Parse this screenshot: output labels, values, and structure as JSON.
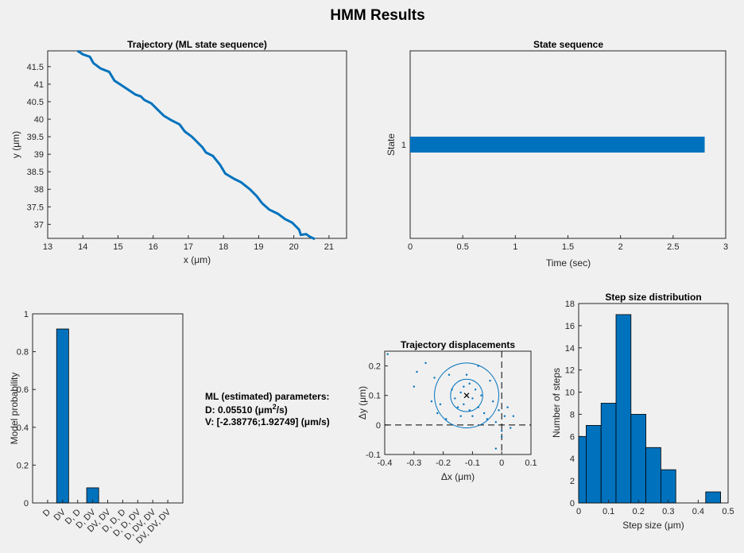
{
  "figure": {
    "title": "HMM Results",
    "params_heading": "ML (estimated) parameters:",
    "params_D_prefix": "D: 0.05510 (",
    "params_D_unit": "μm",
    "params_D_exp": "2",
    "params_D_suffix": "/s)",
    "params_V": "V: [-2.38776;1.92749] (μm/s)"
  },
  "colors": {
    "accent": "#0072bd",
    "bar_edge": "#000000",
    "axis": "#262626",
    "background": "#f0f0f0",
    "plot_bg": "#ffffff"
  },
  "chart_data": [
    {
      "id": "trajectory",
      "type": "line",
      "title": "Trajectory (ML state sequence)",
      "xlabel": "x (μm)",
      "ylabel": "y (μm)",
      "xlim": [
        13,
        21.5
      ],
      "ylim": [
        36.6,
        41.95
      ],
      "xticks": [
        "13",
        "14",
        "15",
        "16",
        "17",
        "18",
        "19",
        "20",
        "21"
      ],
      "yticks": [
        "37",
        "37.5",
        "38",
        "38.5",
        "39",
        "39.5",
        "40",
        "40.5",
        "41",
        "41.5"
      ],
      "x": [
        13.85,
        14.0,
        14.2,
        14.3,
        14.5,
        14.75,
        14.9,
        15.05,
        15.2,
        15.5,
        15.65,
        15.75,
        15.95,
        16.1,
        16.3,
        16.5,
        16.75,
        16.9,
        17.1,
        17.4,
        17.5,
        17.7,
        17.9,
        18.05,
        18.3,
        18.5,
        18.75,
        18.95,
        19.1,
        19.3,
        19.55,
        19.75,
        19.95,
        20.05,
        20.15,
        20.2,
        20.35,
        20.45,
        20.6
      ],
      "y": [
        41.95,
        41.85,
        41.78,
        41.6,
        41.45,
        41.35,
        41.1,
        41.0,
        40.9,
        40.7,
        40.65,
        40.55,
        40.45,
        40.3,
        40.1,
        39.98,
        39.85,
        39.65,
        39.5,
        39.2,
        39.05,
        38.95,
        38.7,
        38.45,
        38.3,
        38.2,
        38.0,
        37.8,
        37.6,
        37.42,
        37.3,
        37.15,
        37.05,
        36.95,
        36.85,
        36.7,
        36.72,
        36.65,
        36.58
      ]
    },
    {
      "id": "state_sequence",
      "type": "line",
      "title": "State sequence",
      "xlabel": "Time (sec)",
      "ylabel": "State",
      "xlim": [
        0,
        3
      ],
      "ylim": [
        0.5,
        1.5
      ],
      "xticks": [
        "0",
        "0.5",
        "1",
        "1.5",
        "2",
        "2.5",
        "3"
      ],
      "yticks": [
        "1"
      ],
      "series": [
        {
          "x": [
            0,
            2.8
          ],
          "y": [
            1,
            1
          ]
        }
      ]
    },
    {
      "id": "model_probability",
      "type": "bar",
      "title": "",
      "xlabel": "",
      "ylabel": "Model probability",
      "ylim": [
        0,
        1
      ],
      "yticks": [
        "0",
        "0.2",
        "0.4",
        "0.6",
        "0.8",
        "1"
      ],
      "categories": [
        "D",
        "DV",
        "D, D",
        "D, DV",
        "DV, DV",
        "D, D, D",
        "D, D, DV",
        "D, DV, DV",
        "DV, DV, DV"
      ],
      "values": [
        0,
        0.92,
        0,
        0.08,
        0,
        0,
        0,
        0,
        0
      ]
    },
    {
      "id": "displacements",
      "type": "scatter",
      "title": "Trajectory displacements",
      "xlabel": "Δx (μm)",
      "ylabel": "Δy (μm)",
      "xlim": [
        -0.4,
        0.1
      ],
      "ylim": [
        -0.1,
        0.25
      ],
      "xticks": [
        "-0.4",
        "-0.3",
        "-0.2",
        "-0.1",
        "0",
        "0.1"
      ],
      "yticks": [
        "-0.1",
        "0",
        "0.1",
        "0.2"
      ],
      "mean": [
        -0.12,
        0.1
      ],
      "circle_radii": [
        0.055,
        0.11
      ],
      "points": [
        [
          -0.39,
          0.24
        ],
        [
          -0.29,
          0.18
        ],
        [
          -0.3,
          0.13
        ],
        [
          -0.26,
          0.21
        ],
        [
          -0.23,
          0.16
        ],
        [
          -0.24,
          0.08
        ],
        [
          -0.21,
          0.07
        ],
        [
          -0.18,
          0.17
        ],
        [
          -0.17,
          0.12
        ],
        [
          -0.16,
          0.09
        ],
        [
          -0.15,
          0.06
        ],
        [
          -0.14,
          0.11
        ],
        [
          -0.14,
          0.03
        ],
        [
          -0.13,
          0.13
        ],
        [
          -0.13,
          0.07
        ],
        [
          -0.12,
          0.1
        ],
        [
          -0.11,
          0.14
        ],
        [
          -0.11,
          0.05
        ],
        [
          -0.1,
          0.09
        ],
        [
          -0.1,
          0.03
        ],
        [
          -0.09,
          0.12
        ],
        [
          -0.08,
          0.06
        ],
        [
          -0.07,
          0.1
        ],
        [
          -0.06,
          0.04
        ],
        [
          -0.05,
          0.02
        ],
        [
          -0.04,
          0.15
        ],
        [
          -0.03,
          0.08
        ],
        [
          -0.02,
          0.01
        ],
        [
          -0.01,
          0.05
        ],
        [
          0.0,
          -0.02
        ],
        [
          0.01,
          0.03
        ],
        [
          0.02,
          0.06
        ],
        [
          0.04,
          0.03
        ],
        [
          -0.22,
          0.04
        ],
        [
          -0.19,
          0.02
        ],
        [
          -0.12,
          0.17
        ],
        [
          -0.08,
          0.2
        ],
        [
          0.03,
          -0.01
        ],
        [
          0.0,
          -0.04
        ],
        [
          -0.02,
          -0.08
        ]
      ]
    },
    {
      "id": "step_size",
      "type": "bar",
      "title": "Step size distribution",
      "xlabel": "Step size (μm)",
      "ylabel": "Number of steps",
      "xlim": [
        0,
        0.5
      ],
      "ylim": [
        0,
        18
      ],
      "xticks": [
        "0",
        "0.1",
        "0.2",
        "0.3",
        "0.4",
        "0.5"
      ],
      "yticks": [
        "0",
        "2",
        "4",
        "6",
        "8",
        "10",
        "12",
        "14",
        "16",
        "18"
      ],
      "bin_edges": [
        0,
        0.025,
        0.075,
        0.125,
        0.175,
        0.225,
        0.275,
        0.325,
        0.375,
        0.425,
        0.475
      ],
      "values": [
        6,
        7,
        9,
        17,
        8,
        5,
        3,
        0,
        0,
        1
      ]
    }
  ]
}
